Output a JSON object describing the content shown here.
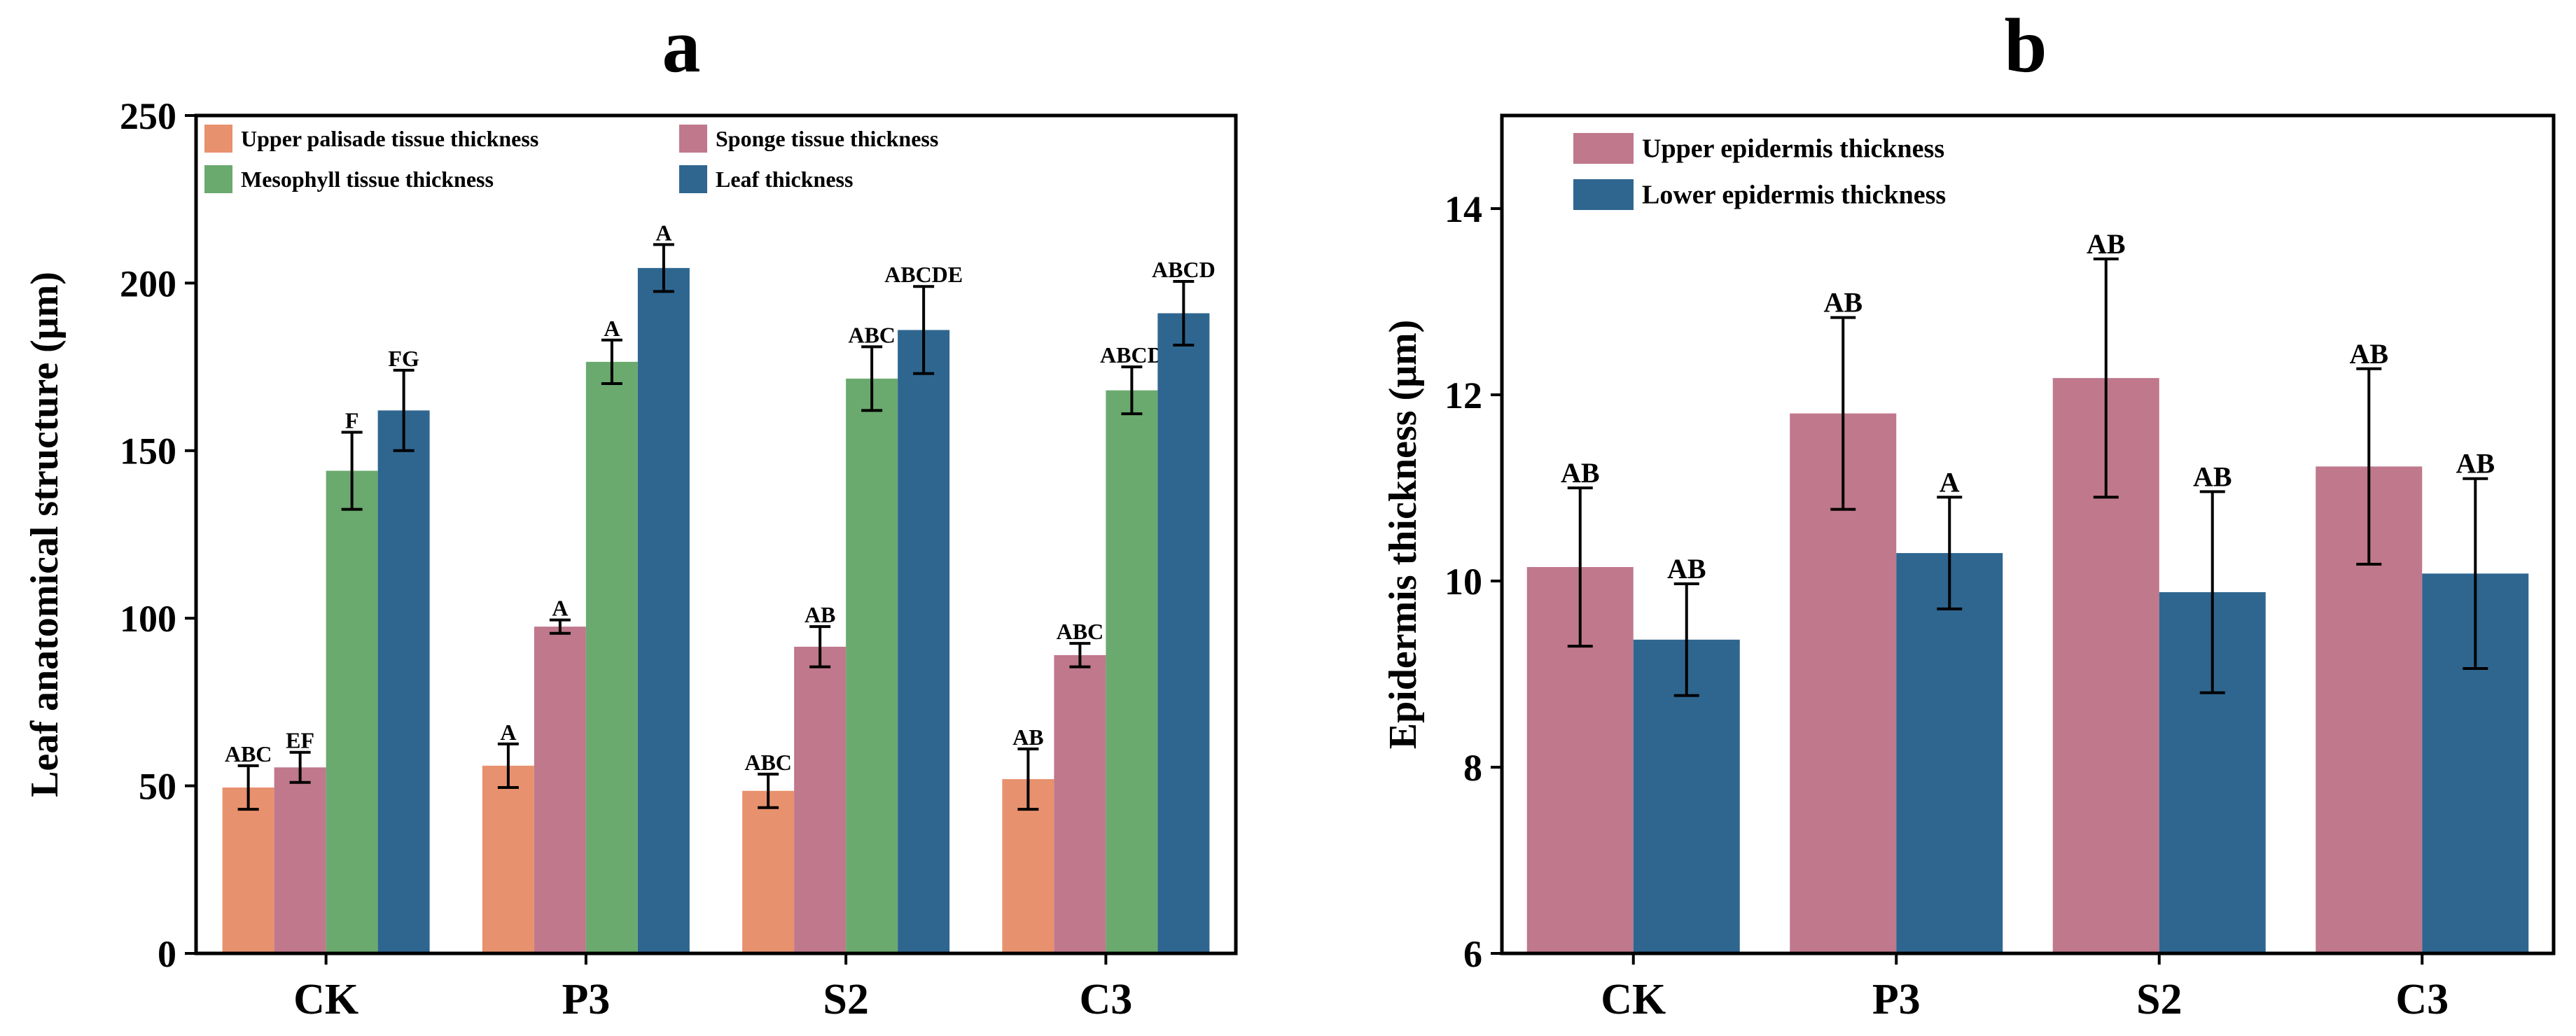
{
  "colors": {
    "upper_palisade": "#E8916E",
    "sponge": "#C0788C",
    "mesophyll": "#6BAA6E",
    "leaf": "#2F6690",
    "upper_epidermis": "#C0788C",
    "lower_epidermis": "#2F6690",
    "axis": "#000000"
  },
  "chart_data": [
    {
      "type": "bar",
      "panel_label": "a",
      "title": "",
      "xlabel": "",
      "ylabel": "Leaf anatomical structure (μm)",
      "categories": [
        "CK",
        "P3",
        "S2",
        "C3"
      ],
      "ylim": [
        0,
        250
      ],
      "yticks": [
        "0",
        "50",
        "100",
        "150",
        "200",
        "250"
      ],
      "grid": false,
      "legend_position": "top-left",
      "series": [
        {
          "name": "Upper palisade tissue thickness",
          "color_key": "upper_palisade",
          "values": [
            49.5,
            56,
            48.5,
            52
          ],
          "errors": [
            6.5,
            6.5,
            5,
            9
          ],
          "letters": [
            "ABC",
            "A",
            "ABC",
            "AB"
          ]
        },
        {
          "name": "Sponge tissue thickness",
          "color_key": "sponge",
          "values": [
            55.5,
            97.5,
            91.5,
            89
          ],
          "errors": [
            4.5,
            2,
            6,
            3.5
          ],
          "letters": [
            "EF",
            "A",
            "AB",
            "ABC"
          ]
        },
        {
          "name": "Mesophyll tissue thickness",
          "color_key": "mesophyll",
          "values": [
            144,
            176.5,
            171.5,
            168
          ],
          "errors": [
            11.5,
            6.5,
            9.5,
            7
          ],
          "letters": [
            "F",
            "A",
            "ABC",
            "ABCD"
          ]
        },
        {
          "name": "Leaf thickness",
          "color_key": "leaf",
          "values": [
            162,
            204.5,
            186,
            191
          ],
          "errors": [
            12,
            7,
            13,
            9.5
          ],
          "letters": [
            "FG",
            "A",
            "ABCDE",
            "ABCD"
          ]
        }
      ]
    },
    {
      "type": "bar",
      "panel_label": "b",
      "title": "",
      "xlabel": "",
      "ylabel": "Epidermis thickness (μm)",
      "categories": [
        "CK",
        "P3",
        "S2",
        "C3"
      ],
      "ylim": [
        6,
        15
      ],
      "yticks": [
        "6",
        "8",
        "10",
        "12",
        "14"
      ],
      "grid": false,
      "legend_position": "top-left",
      "series": [
        {
          "name": "Upper epidermis thickness",
          "color_key": "upper_epidermis",
          "values": [
            10.15,
            11.8,
            12.18,
            11.23
          ],
          "errors": [
            0.85,
            1.03,
            1.28,
            1.05
          ],
          "letters": [
            "AB",
            "AB",
            "AB",
            "AB"
          ]
        },
        {
          "name": "Lower epidermis thickness",
          "color_key": "lower_epidermis",
          "values": [
            9.37,
            10.3,
            9.88,
            10.08
          ],
          "errors": [
            0.6,
            0.6,
            1.08,
            1.02
          ],
          "letters": [
            "AB",
            "A",
            "AB",
            "AB"
          ]
        }
      ]
    }
  ]
}
